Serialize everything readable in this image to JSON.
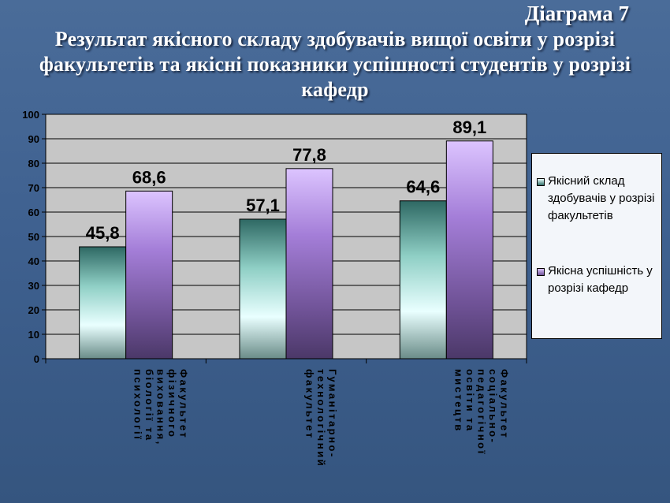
{
  "slide": {
    "number": "Діаграма 7",
    "title_lines": [
      "Результат якісного складу здобувачів вищої освіти у розрізі",
      "факультетів та якісні показники успішності студентів у розрізі",
      "кафедр"
    ]
  },
  "chart_data": {
    "type": "bar",
    "title": "",
    "xlabel": "",
    "ylabel": "",
    "ylim": [
      0,
      100
    ],
    "yticks": [
      0,
      10,
      20,
      30,
      40,
      50,
      60,
      70,
      80,
      90,
      100
    ],
    "grid": true,
    "legend_position": "right",
    "categories": [
      [
        "Факультет",
        "фізичного",
        "виховання,",
        "біології та",
        "психології"
      ],
      [
        "Гуманітарно-",
        "технологічний",
        "факультет"
      ],
      [
        "Факультет",
        "соціально-",
        "педагогічної",
        "освіти та",
        "мистецтв"
      ]
    ],
    "series": [
      {
        "name": "Якісний склад здобувачів у розрізі факультетів",
        "values": [
          45.8,
          57.1,
          64.6
        ],
        "labels": [
          "45,8",
          "57,1",
          "64,6"
        ],
        "color": "#2f6e68"
      },
      {
        "name": "Якісна успішність у розрізі кафедр",
        "values": [
          68.6,
          77.8,
          89.1
        ],
        "labels": [
          "68,6",
          "77,8",
          "89,1"
        ],
        "color": "#a77fd8"
      }
    ]
  },
  "legend": {
    "items": [
      {
        "lines": [
          "Якісний склад",
          "здобувачів у розрізі",
          "факультетів"
        ]
      },
      {
        "lines": [
          "Якісна успішність у",
          "розрізі кафедр"
        ]
      }
    ]
  }
}
